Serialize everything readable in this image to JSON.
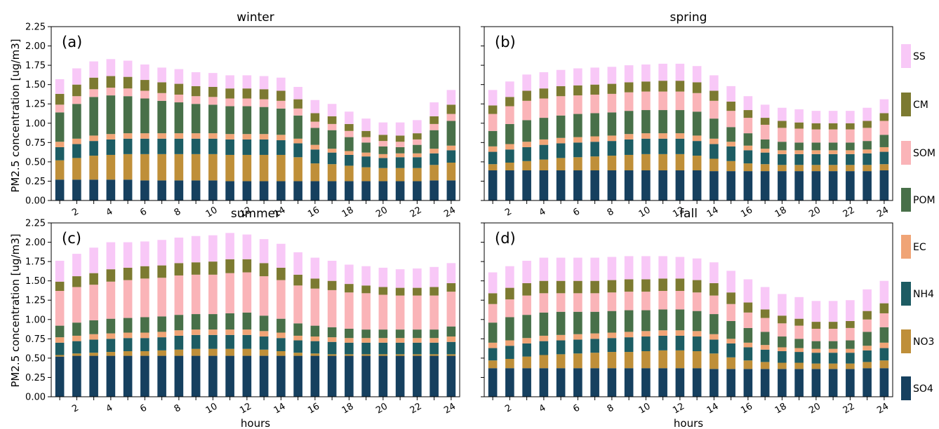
{
  "colors": {
    "SO4": "#16405f",
    "NO3": "#bf8f39",
    "NH4": "#1d5c63",
    "EC": "#f0a476",
    "POM": "#487049",
    "SOM": "#fab4b8",
    "CM": "#7c7a31",
    "SS": "#f8c8f7"
  },
  "legend": {
    "placement": "right",
    "entries": [
      "SS",
      "CM",
      "SOM",
      "POM",
      "EC",
      "NH4",
      "NO3",
      "SO4"
    ]
  },
  "ylabel": "PM2.5 concentration [ug/m3]",
  "xlabel": "hours",
  "chart_data": [
    {
      "type": "bar",
      "stacked": true,
      "title": "winter",
      "panel_label": "(a)",
      "x": [
        1,
        2,
        3,
        4,
        5,
        6,
        7,
        8,
        9,
        10,
        11,
        12,
        13,
        14,
        15,
        16,
        17,
        18,
        19,
        20,
        21,
        22,
        23,
        24
      ],
      "xticks": [
        "2",
        "4",
        "6",
        "8",
        "10",
        "12",
        "14",
        "16",
        "18",
        "20",
        "22",
        "24"
      ],
      "ylim": [
        0,
        2.25
      ],
      "yticks": [
        "0.00",
        "0.25",
        "0.50",
        "0.75",
        "1.00",
        "1.25",
        "1.50",
        "1.75",
        "2.00",
        "2.25"
      ],
      "series": [
        {
          "name": "SO4",
          "values": [
            0.27,
            0.27,
            0.27,
            0.27,
            0.27,
            0.26,
            0.26,
            0.26,
            0.26,
            0.26,
            0.25,
            0.25,
            0.25,
            0.25,
            0.25,
            0.25,
            0.25,
            0.25,
            0.25,
            0.25,
            0.25,
            0.25,
            0.26,
            0.26
          ]
        },
        {
          "name": "NO3",
          "values": [
            0.25,
            0.28,
            0.31,
            0.32,
            0.33,
            0.34,
            0.34,
            0.34,
            0.34,
            0.34,
            0.34,
            0.34,
            0.34,
            0.34,
            0.31,
            0.23,
            0.22,
            0.2,
            0.18,
            0.17,
            0.17,
            0.17,
            0.2,
            0.23
          ]
        },
        {
          "name": "NH4",
          "values": [
            0.17,
            0.18,
            0.19,
            0.2,
            0.2,
            0.2,
            0.2,
            0.2,
            0.2,
            0.2,
            0.2,
            0.2,
            0.2,
            0.19,
            0.18,
            0.18,
            0.15,
            0.14,
            0.14,
            0.13,
            0.14,
            0.14,
            0.15,
            0.16
          ]
        },
        {
          "name": "EC",
          "values": [
            0.07,
            0.07,
            0.07,
            0.07,
            0.07,
            0.07,
            0.07,
            0.07,
            0.07,
            0.07,
            0.07,
            0.07,
            0.07,
            0.07,
            0.06,
            0.06,
            0.05,
            0.05,
            0.05,
            0.05,
            0.05,
            0.05,
            0.06,
            0.06
          ]
        },
        {
          "name": "POM",
          "values": [
            0.38,
            0.45,
            0.5,
            0.5,
            0.48,
            0.45,
            0.42,
            0.4,
            0.38,
            0.37,
            0.36,
            0.36,
            0.35,
            0.34,
            0.3,
            0.22,
            0.24,
            0.18,
            0.13,
            0.1,
            0.08,
            0.11,
            0.24,
            0.32
          ]
        },
        {
          "name": "SOM",
          "values": [
            0.1,
            0.1,
            0.1,
            0.1,
            0.1,
            0.1,
            0.1,
            0.1,
            0.1,
            0.1,
            0.1,
            0.1,
            0.1,
            0.1,
            0.09,
            0.08,
            0.08,
            0.08,
            0.07,
            0.07,
            0.07,
            0.07,
            0.08,
            0.09
          ]
        },
        {
          "name": "CM",
          "values": [
            0.14,
            0.15,
            0.15,
            0.15,
            0.15,
            0.14,
            0.14,
            0.14,
            0.13,
            0.13,
            0.13,
            0.13,
            0.13,
            0.13,
            0.12,
            0.11,
            0.1,
            0.09,
            0.08,
            0.08,
            0.08,
            0.08,
            0.1,
            0.12
          ]
        },
        {
          "name": "SS",
          "values": [
            0.19,
            0.21,
            0.21,
            0.22,
            0.21,
            0.2,
            0.19,
            0.19,
            0.18,
            0.18,
            0.17,
            0.17,
            0.17,
            0.17,
            0.16,
            0.17,
            0.16,
            0.16,
            0.16,
            0.16,
            0.17,
            0.17,
            0.18,
            0.19
          ]
        }
      ]
    },
    {
      "type": "bar",
      "stacked": true,
      "title": "spring",
      "panel_label": "(b)",
      "x": [
        1,
        2,
        3,
        4,
        5,
        6,
        7,
        8,
        9,
        10,
        11,
        12,
        13,
        14,
        15,
        16,
        17,
        18,
        19,
        20,
        21,
        22,
        23,
        24
      ],
      "xticks": [
        "2",
        "4",
        "6",
        "8",
        "10",
        "12",
        "14",
        "16",
        "18",
        "20",
        "22",
        "24"
      ],
      "ylim": [
        0,
        2.25
      ],
      "series": [
        {
          "name": "SO4",
          "values": [
            0.39,
            0.39,
            0.39,
            0.39,
            0.39,
            0.39,
            0.39,
            0.39,
            0.39,
            0.39,
            0.39,
            0.39,
            0.39,
            0.38,
            0.38,
            0.38,
            0.38,
            0.38,
            0.38,
            0.38,
            0.38,
            0.38,
            0.38,
            0.39
          ]
        },
        {
          "name": "NO3",
          "values": [
            0.08,
            0.1,
            0.12,
            0.14,
            0.16,
            0.17,
            0.18,
            0.19,
            0.2,
            0.21,
            0.21,
            0.21,
            0.19,
            0.16,
            0.13,
            0.1,
            0.09,
            0.08,
            0.08,
            0.08,
            0.08,
            0.08,
            0.08,
            0.08
          ]
        },
        {
          "name": "NH4",
          "values": [
            0.16,
            0.17,
            0.18,
            0.19,
            0.19,
            0.19,
            0.19,
            0.19,
            0.2,
            0.2,
            0.2,
            0.2,
            0.19,
            0.19,
            0.19,
            0.17,
            0.15,
            0.14,
            0.14,
            0.14,
            0.14,
            0.14,
            0.15,
            0.16
          ]
        },
        {
          "name": "EC",
          "values": [
            0.07,
            0.07,
            0.07,
            0.07,
            0.07,
            0.07,
            0.07,
            0.07,
            0.07,
            0.07,
            0.07,
            0.07,
            0.07,
            0.07,
            0.06,
            0.06,
            0.05,
            0.05,
            0.05,
            0.05,
            0.05,
            0.05,
            0.05,
            0.06
          ]
        },
        {
          "name": "POM",
          "values": [
            0.2,
            0.26,
            0.28,
            0.28,
            0.29,
            0.3,
            0.3,
            0.3,
            0.3,
            0.3,
            0.3,
            0.3,
            0.31,
            0.26,
            0.19,
            0.16,
            0.12,
            0.11,
            0.1,
            0.1,
            0.1,
            0.1,
            0.11,
            0.16
          ]
        },
        {
          "name": "SOM",
          "values": [
            0.22,
            0.23,
            0.25,
            0.25,
            0.25,
            0.24,
            0.24,
            0.24,
            0.24,
            0.24,
            0.24,
            0.24,
            0.24,
            0.23,
            0.21,
            0.2,
            0.19,
            0.18,
            0.18,
            0.17,
            0.17,
            0.17,
            0.17,
            0.18
          ]
        },
        {
          "name": "CM",
          "values": [
            0.11,
            0.12,
            0.13,
            0.13,
            0.13,
            0.13,
            0.13,
            0.13,
            0.13,
            0.13,
            0.14,
            0.14,
            0.14,
            0.13,
            0.12,
            0.1,
            0.09,
            0.09,
            0.08,
            0.08,
            0.08,
            0.08,
            0.09,
            0.1
          ]
        },
        {
          "name": "SS",
          "values": [
            0.2,
            0.2,
            0.21,
            0.21,
            0.21,
            0.22,
            0.22,
            0.22,
            0.22,
            0.22,
            0.22,
            0.22,
            0.21,
            0.2,
            0.2,
            0.18,
            0.17,
            0.17,
            0.17,
            0.16,
            0.16,
            0.16,
            0.17,
            0.18
          ]
        }
      ]
    },
    {
      "type": "bar",
      "stacked": true,
      "title": "summer",
      "panel_label": "(c)",
      "x": [
        1,
        2,
        3,
        4,
        5,
        6,
        7,
        8,
        9,
        10,
        11,
        12,
        13,
        14,
        15,
        16,
        17,
        18,
        19,
        20,
        21,
        22,
        23,
        24
      ],
      "xticks": [
        "2",
        "4",
        "6",
        "8",
        "10",
        "12",
        "14",
        "16",
        "18",
        "20",
        "22",
        "24"
      ],
      "ylim": [
        0,
        2.25
      ],
      "yticks": [
        "0.00",
        "0.25",
        "0.50",
        "0.75",
        "1.00",
        "1.25",
        "1.50",
        "1.75",
        "2.00",
        "2.25"
      ],
      "series": [
        {
          "name": "SO4",
          "values": [
            0.52,
            0.53,
            0.53,
            0.53,
            0.53,
            0.53,
            0.53,
            0.53,
            0.53,
            0.53,
            0.53,
            0.53,
            0.53,
            0.53,
            0.53,
            0.53,
            0.53,
            0.53,
            0.53,
            0.53,
            0.53,
            0.53,
            0.53,
            0.53
          ]
        },
        {
          "name": "NO3",
          "values": [
            0.02,
            0.03,
            0.04,
            0.05,
            0.06,
            0.06,
            0.07,
            0.08,
            0.09,
            0.09,
            0.09,
            0.09,
            0.08,
            0.06,
            0.04,
            0.03,
            0.02,
            0.02,
            0.02,
            0.02,
            0.02,
            0.02,
            0.02,
            0.02
          ]
        },
        {
          "name": "NH4",
          "values": [
            0.16,
            0.16,
            0.17,
            0.17,
            0.17,
            0.17,
            0.17,
            0.18,
            0.18,
            0.18,
            0.18,
            0.18,
            0.17,
            0.17,
            0.16,
            0.16,
            0.16,
            0.15,
            0.15,
            0.15,
            0.15,
            0.15,
            0.15,
            0.16
          ]
        },
        {
          "name": "EC",
          "values": [
            0.07,
            0.07,
            0.07,
            0.07,
            0.07,
            0.07,
            0.07,
            0.07,
            0.07,
            0.07,
            0.07,
            0.07,
            0.07,
            0.07,
            0.06,
            0.06,
            0.06,
            0.06,
            0.06,
            0.06,
            0.06,
            0.06,
            0.06,
            0.07
          ]
        },
        {
          "name": "POM",
          "values": [
            0.15,
            0.17,
            0.18,
            0.19,
            0.19,
            0.2,
            0.2,
            0.2,
            0.2,
            0.2,
            0.21,
            0.22,
            0.2,
            0.18,
            0.16,
            0.14,
            0.13,
            0.12,
            0.11,
            0.11,
            0.11,
            0.11,
            0.11,
            0.13
          ]
        },
        {
          "name": "SOM",
          "values": [
            0.45,
            0.46,
            0.46,
            0.48,
            0.49,
            0.5,
            0.5,
            0.51,
            0.51,
            0.51,
            0.52,
            0.52,
            0.51,
            0.5,
            0.49,
            0.48,
            0.48,
            0.47,
            0.47,
            0.45,
            0.44,
            0.44,
            0.44,
            0.45
          ]
        },
        {
          "name": "CM",
          "values": [
            0.12,
            0.14,
            0.15,
            0.16,
            0.16,
            0.16,
            0.16,
            0.16,
            0.16,
            0.17,
            0.18,
            0.17,
            0.17,
            0.16,
            0.14,
            0.13,
            0.12,
            0.11,
            0.1,
            0.1,
            0.1,
            0.1,
            0.11,
            0.11
          ]
        },
        {
          "name": "SS",
          "values": [
            0.27,
            0.29,
            0.33,
            0.35,
            0.33,
            0.32,
            0.33,
            0.33,
            0.34,
            0.34,
            0.34,
            0.32,
            0.31,
            0.31,
            0.29,
            0.27,
            0.26,
            0.25,
            0.25,
            0.25,
            0.24,
            0.25,
            0.26,
            0.26
          ]
        }
      ]
    },
    {
      "type": "bar",
      "stacked": true,
      "title": "fall",
      "panel_label": "(d)",
      "x": [
        1,
        2,
        3,
        4,
        5,
        6,
        7,
        8,
        9,
        10,
        11,
        12,
        13,
        14,
        15,
        16,
        17,
        18,
        19,
        20,
        21,
        22,
        23,
        24
      ],
      "xticks": [
        "2",
        "4",
        "6",
        "8",
        "10",
        "12",
        "14",
        "16",
        "18",
        "20",
        "22",
        "24"
      ],
      "ylim": [
        0,
        2.25
      ],
      "series": [
        {
          "name": "SO4",
          "values": [
            0.37,
            0.37,
            0.37,
            0.37,
            0.37,
            0.37,
            0.37,
            0.37,
            0.37,
            0.37,
            0.37,
            0.37,
            0.37,
            0.36,
            0.36,
            0.36,
            0.36,
            0.36,
            0.36,
            0.36,
            0.36,
            0.36,
            0.37,
            0.37
          ]
        },
        {
          "name": "NO3",
          "values": [
            0.1,
            0.12,
            0.15,
            0.17,
            0.18,
            0.19,
            0.2,
            0.21,
            0.21,
            0.22,
            0.23,
            0.23,
            0.22,
            0.2,
            0.15,
            0.11,
            0.09,
            0.08,
            0.08,
            0.07,
            0.07,
            0.07,
            0.08,
            0.1
          ]
        },
        {
          "name": "NH4",
          "values": [
            0.16,
            0.17,
            0.17,
            0.18,
            0.18,
            0.18,
            0.18,
            0.18,
            0.19,
            0.19,
            0.19,
            0.19,
            0.19,
            0.18,
            0.18,
            0.17,
            0.16,
            0.15,
            0.14,
            0.14,
            0.14,
            0.14,
            0.15,
            0.16
          ]
        },
        {
          "name": "EC",
          "values": [
            0.07,
            0.07,
            0.07,
            0.07,
            0.07,
            0.07,
            0.07,
            0.07,
            0.07,
            0.07,
            0.07,
            0.07,
            0.07,
            0.07,
            0.06,
            0.06,
            0.06,
            0.05,
            0.05,
            0.05,
            0.05,
            0.05,
            0.06,
            0.07
          ]
        },
        {
          "name": "POM",
          "values": [
            0.26,
            0.3,
            0.3,
            0.3,
            0.3,
            0.29,
            0.28,
            0.28,
            0.28,
            0.27,
            0.27,
            0.27,
            0.26,
            0.26,
            0.23,
            0.19,
            0.17,
            0.14,
            0.12,
            0.1,
            0.1,
            0.11,
            0.18,
            0.2
          ]
        },
        {
          "name": "SOM",
          "values": [
            0.24,
            0.23,
            0.25,
            0.25,
            0.24,
            0.24,
            0.24,
            0.24,
            0.24,
            0.24,
            0.24,
            0.24,
            0.24,
            0.24,
            0.22,
            0.2,
            0.18,
            0.17,
            0.17,
            0.16,
            0.16,
            0.16,
            0.16,
            0.18
          ]
        },
        {
          "name": "CM",
          "values": [
            0.14,
            0.15,
            0.16,
            0.16,
            0.16,
            0.16,
            0.16,
            0.16,
            0.16,
            0.16,
            0.16,
            0.16,
            0.16,
            0.16,
            0.15,
            0.13,
            0.11,
            0.1,
            0.09,
            0.09,
            0.09,
            0.09,
            0.11,
            0.13
          ]
        },
        {
          "name": "SS",
          "values": [
            0.27,
            0.28,
            0.29,
            0.3,
            0.3,
            0.3,
            0.3,
            0.3,
            0.3,
            0.3,
            0.29,
            0.28,
            0.28,
            0.27,
            0.28,
            0.3,
            0.29,
            0.28,
            0.28,
            0.27,
            0.27,
            0.27,
            0.28,
            0.29
          ]
        }
      ]
    }
  ]
}
